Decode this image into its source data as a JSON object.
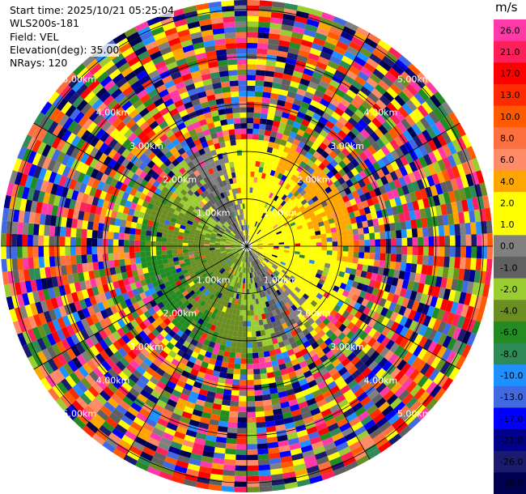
{
  "header": {
    "start_time": "Start time: 2025/10/21 05:25:04",
    "instrument": "WLS200s-181",
    "field": "Field: VEL",
    "elevation": "Elevation(deg): 35.00",
    "nrays": "NRays: 120"
  },
  "colorbar": {
    "unit": "m/s",
    "ticks": [
      "26.0",
      "21.0",
      "17.0",
      "13.0",
      "10.0",
      "8.0",
      "6.0",
      "4.0",
      "2.0",
      "1.0",
      "0.0",
      "-1.0",
      "-2.0",
      "-4.0",
      "-6.0",
      "-8.0",
      "-10.0",
      "-13.0",
      "-17.0",
      "-21.0",
      "-26.0",
      "-30.0"
    ],
    "colors": [
      "#ff3aa8",
      "#ff1f5a",
      "#ff0000",
      "#ff2a00",
      "#ff5a00",
      "#ff7040",
      "#ff8c66",
      "#ffa500",
      "#ffff00",
      "#ffff00",
      "#808080",
      "#606060",
      "#9acd32",
      "#6b8e23",
      "#228b22",
      "#2e8b57",
      "#1e90ff",
      "#4169e1",
      "#0000ff",
      "#00008b",
      "#1a1a6e",
      "#000050"
    ]
  },
  "chart_data": {
    "type": "heatmap",
    "title": "",
    "ppi": {
      "nrays": 120,
      "range_labels": [
        "1.00km",
        "2.00km",
        "3.00km",
        "4.00km",
        "5.00km"
      ],
      "max_range_km": 5.2,
      "near_field": "mostly yellow/orange (positive) in north-east, green/blue (negative) in south-west",
      "far_field": "random noise across full colour scale"
    }
  }
}
